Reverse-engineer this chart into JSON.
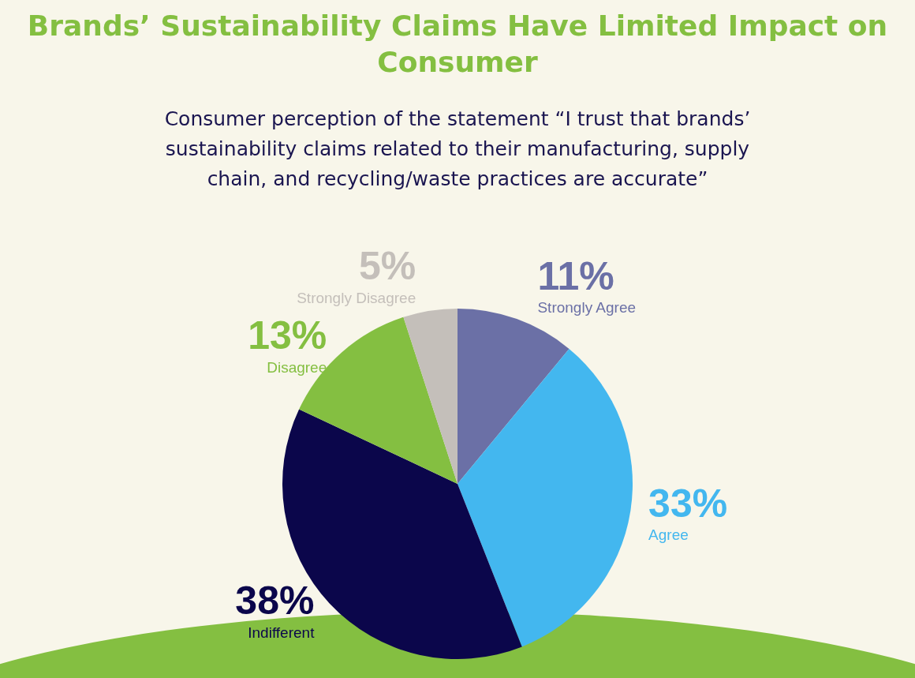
{
  "chart_data": {
    "type": "pie",
    "title": "Brands’ Sustainability Claims Have Limited Impact on Consumer",
    "subtitle": "Consumer perception of the statement “I trust that brands’ sustainability claims related to their manufacturing, supply chain, and recycling/waste practices are accurate”",
    "categories": [
      "Strongly Agree",
      "Agree",
      "Indifferent",
      "Disagree",
      "Strongly Disagree"
    ],
    "values": [
      11,
      33,
      38,
      13,
      5
    ],
    "value_labels": [
      "11%",
      "33%",
      "38%",
      "13%",
      "5%"
    ],
    "colors": [
      "#6b70a6",
      "#43b7ef",
      "#0b064b",
      "#84bf41",
      "#c4bfba"
    ],
    "legend": false
  }
}
